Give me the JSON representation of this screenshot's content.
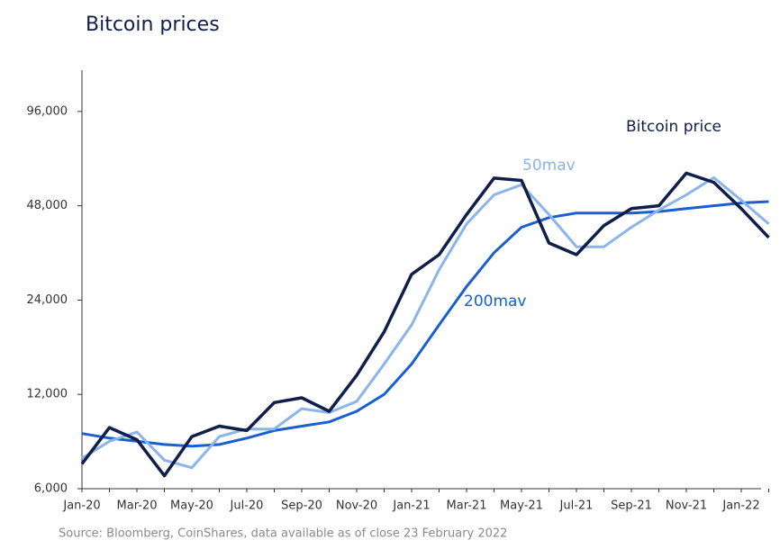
{
  "chart_data": {
    "type": "line",
    "title": "Bitcoin prices",
    "source": "Source: Bloomberg, CoinShares, data available as of close 23 February 2022",
    "log_scale": true,
    "categories": [
      "Jan-20",
      null,
      "Mar-20",
      null,
      "May-20",
      null,
      "Jul-20",
      null,
      "Sep-20",
      null,
      "Nov-20",
      null,
      "Jan-21",
      null,
      "Mar-21",
      null,
      "May-21",
      null,
      "Jul-21",
      null,
      "Sep-21",
      null,
      "Nov-21",
      null,
      "Jan-22",
      null
    ],
    "ylim": [
      6000,
      130000
    ],
    "yticks": [
      {
        "value": 6000,
        "label": "6,000"
      },
      {
        "value": 12000,
        "label": "12,000"
      },
      {
        "value": 24000,
        "label": "24,000"
      },
      {
        "value": 48000,
        "label": "48,000"
      },
      {
        "value": 96000,
        "label": "96,000"
      }
    ],
    "series": [
      {
        "name": "Bitcoin price",
        "color": "#0f1e4a",
        "values": [
          7200,
          9400,
          8600,
          6600,
          8800,
          9500,
          9200,
          11300,
          11700,
          10600,
          13800,
          19000,
          29000,
          33500,
          45000,
          58800,
          57800,
          36500,
          33500,
          41500,
          47000,
          48000,
          61000,
          57000,
          47000,
          38000
        ]
      },
      {
        "name": "50mav",
        "color": "#8ab4ea",
        "values": [
          7500,
          8500,
          9100,
          7400,
          7000,
          8800,
          9300,
          9300,
          10800,
          10500,
          11400,
          15000,
          20000,
          30000,
          42000,
          52000,
          56000,
          45000,
          35500,
          35500,
          41000,
          46500,
          52000,
          59000,
          50000,
          42000
        ]
      },
      {
        "name": "200mav",
        "color": "#1a5fd0",
        "values": [
          9000,
          8700,
          8500,
          8300,
          8200,
          8300,
          8700,
          9200,
          9500,
          9800,
          10600,
          12000,
          15000,
          20000,
          26500,
          34000,
          41000,
          44000,
          45500,
          45500,
          45500,
          46000,
          47000,
          48000,
          49000,
          49500
        ]
      }
    ]
  }
}
